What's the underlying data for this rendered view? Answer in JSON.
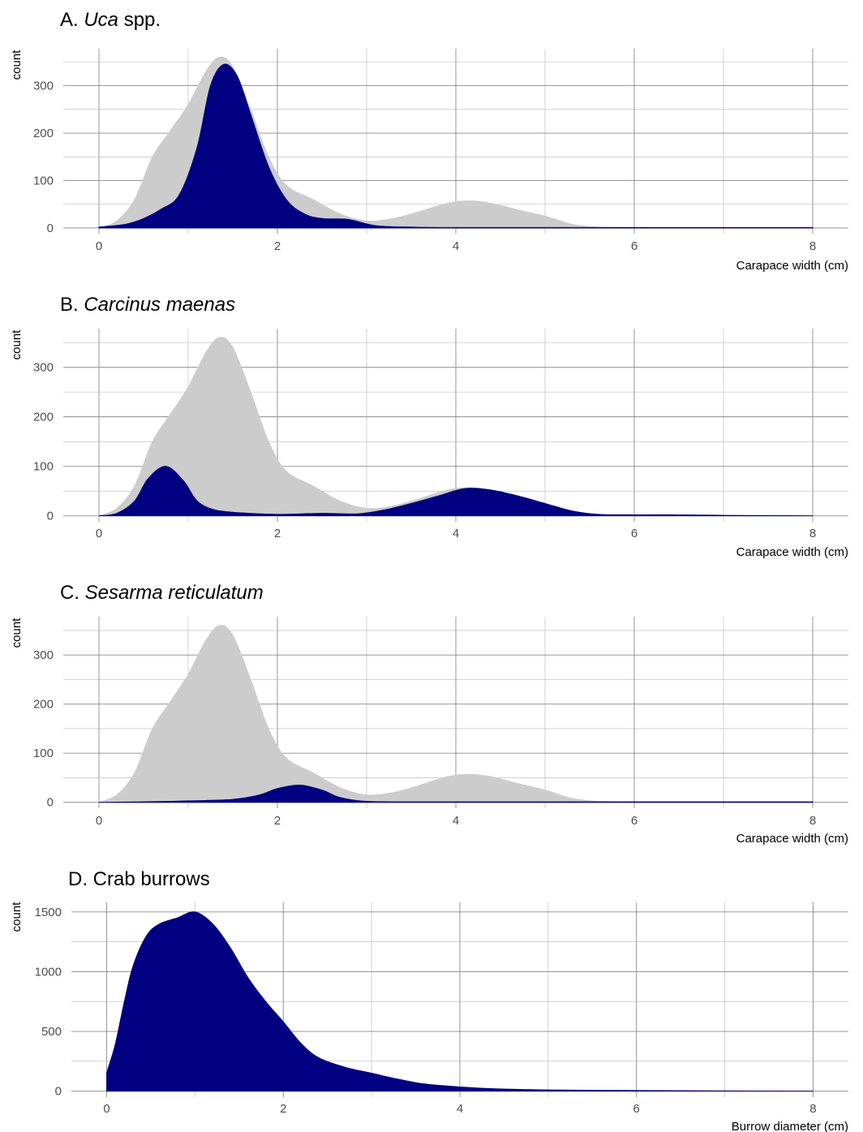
{
  "chart_data": [
    {
      "type": "area",
      "title_prefix": "A. ",
      "title_italic": "Uca",
      "title_suffix": " spp.",
      "xlabel": "Carapace width (cm)",
      "ylabel": "count",
      "xlim": [
        -0.4,
        8.4
      ],
      "ylim": [
        -12,
        378
      ],
      "x_ticks": [
        0,
        2,
        4,
        6,
        8
      ],
      "y_ticks": [
        0,
        100,
        200,
        300
      ],
      "grid": true,
      "series": [
        {
          "role": "background",
          "color": "#cccccc",
          "x": [
            0,
            0.2,
            0.4,
            0.6,
            0.8,
            1.0,
            1.2,
            1.35,
            1.5,
            1.7,
            1.9,
            2.1,
            2.4,
            2.7,
            3.0,
            3.3,
            3.6,
            3.9,
            4.15,
            4.4,
            4.7,
            5.0,
            5.3,
            5.6,
            6.0,
            7.0,
            8.0
          ],
          "y": [
            0,
            15,
            60,
            150,
            205,
            260,
            330,
            360,
            340,
            250,
            150,
            90,
            60,
            30,
            15,
            20,
            35,
            52,
            57,
            52,
            38,
            25,
            8,
            2,
            1,
            0,
            0
          ]
        },
        {
          "role": "species",
          "color": "#000080",
          "x": [
            0,
            0.3,
            0.5,
            0.7,
            0.9,
            1.1,
            1.25,
            1.4,
            1.55,
            1.7,
            1.9,
            2.1,
            2.3,
            2.5,
            2.8,
            3.1,
            3.5,
            4.0,
            5.0,
            6.0,
            7.0,
            8.0
          ],
          "y": [
            2,
            8,
            20,
            40,
            70,
            170,
            300,
            345,
            320,
            240,
            130,
            60,
            30,
            20,
            18,
            5,
            2,
            1,
            1,
            1,
            1,
            1
          ]
        }
      ]
    },
    {
      "type": "area",
      "title_prefix": "B. ",
      "title_italic": "Carcinus maenas",
      "title_suffix": "",
      "xlabel": "Carapace width (cm)",
      "ylabel": "count",
      "xlim": [
        -0.4,
        8.4
      ],
      "ylim": [
        -12,
        378
      ],
      "x_ticks": [
        0,
        2,
        4,
        6,
        8
      ],
      "y_ticks": [
        0,
        100,
        200,
        300
      ],
      "grid": true,
      "series": [
        {
          "role": "background",
          "color": "#cccccc",
          "x": [
            0,
            0.2,
            0.4,
            0.6,
            0.8,
            1.0,
            1.2,
            1.35,
            1.5,
            1.7,
            1.9,
            2.1,
            2.4,
            2.7,
            3.0,
            3.3,
            3.6,
            3.9,
            4.15,
            4.4,
            4.7,
            5.0,
            5.3,
            5.6,
            6.0,
            7.0,
            8.0
          ],
          "y": [
            0,
            15,
            60,
            150,
            205,
            260,
            330,
            360,
            340,
            250,
            150,
            90,
            60,
            30,
            15,
            20,
            35,
            52,
            57,
            52,
            38,
            25,
            8,
            2,
            1,
            0,
            0
          ]
        },
        {
          "role": "species",
          "color": "#000080",
          "x": [
            0,
            0.2,
            0.4,
            0.55,
            0.75,
            0.95,
            1.1,
            1.3,
            1.6,
            2.0,
            2.5,
            2.9,
            3.2,
            3.5,
            3.8,
            4.1,
            4.4,
            4.7,
            5.0,
            5.3,
            5.6,
            6.0,
            6.5,
            7.0,
            8.0
          ],
          "y": [
            0,
            5,
            30,
            75,
            100,
            70,
            30,
            12,
            6,
            3,
            5,
            4,
            12,
            25,
            40,
            55,
            52,
            40,
            25,
            10,
            3,
            2,
            2,
            1,
            0
          ]
        }
      ]
    },
    {
      "type": "area",
      "title_prefix": "C. ",
      "title_italic": "Sesarma reticulatum",
      "title_suffix": "",
      "xlabel": "Carapace width (cm)",
      "ylabel": "count",
      "xlim": [
        -0.4,
        8.4
      ],
      "ylim": [
        -12,
        378
      ],
      "x_ticks": [
        0,
        2,
        4,
        6,
        8
      ],
      "y_ticks": [
        0,
        100,
        200,
        300
      ],
      "grid": true,
      "series": [
        {
          "role": "background",
          "color": "#cccccc",
          "x": [
            0,
            0.2,
            0.4,
            0.6,
            0.8,
            1.0,
            1.2,
            1.35,
            1.5,
            1.7,
            1.9,
            2.1,
            2.4,
            2.7,
            3.0,
            3.3,
            3.6,
            3.9,
            4.15,
            4.4,
            4.7,
            5.0,
            5.3,
            5.6,
            6.0,
            7.0,
            8.0
          ],
          "y": [
            0,
            15,
            60,
            150,
            205,
            260,
            330,
            360,
            340,
            250,
            150,
            90,
            60,
            30,
            15,
            20,
            35,
            52,
            57,
            52,
            38,
            25,
            8,
            2,
            1,
            0,
            0
          ]
        },
        {
          "role": "species",
          "color": "#000080",
          "x": [
            0,
            0.5,
            1.0,
            1.5,
            1.8,
            2.0,
            2.25,
            2.5,
            2.7,
            3.0,
            3.5,
            4.0,
            5.0,
            6.0,
            7.0,
            8.0
          ],
          "y": [
            0,
            1,
            3,
            6,
            15,
            28,
            35,
            25,
            10,
            2,
            1,
            1,
            1,
            1,
            1,
            1
          ]
        }
      ]
    },
    {
      "type": "area",
      "title_prefix": "D. Crab burrows",
      "title_italic": "",
      "title_suffix": "",
      "xlabel": "Burrow diameter (cm)",
      "ylabel": "count",
      "xlim": [
        -0.4,
        8.4
      ],
      "ylim": [
        -50,
        1580
      ],
      "x_ticks": [
        0,
        2,
        4,
        6,
        8
      ],
      "y_ticks": [
        0,
        500,
        1000,
        1500
      ],
      "grid": true,
      "series": [
        {
          "role": "species",
          "color": "#000080",
          "x": [
            0,
            0.02,
            0.1,
            0.2,
            0.3,
            0.45,
            0.6,
            0.8,
            1.0,
            1.2,
            1.4,
            1.6,
            1.8,
            2.0,
            2.2,
            2.4,
            2.7,
            3.0,
            3.3,
            3.6,
            4.0,
            4.4,
            5.0,
            6.0,
            7.0,
            8.0
          ],
          "y": [
            150,
            200,
            400,
            750,
            1050,
            1300,
            1400,
            1450,
            1500,
            1400,
            1200,
            950,
            750,
            580,
            400,
            280,
            200,
            150,
            100,
            60,
            35,
            20,
            10,
            5,
            2,
            0
          ]
        }
      ]
    }
  ]
}
